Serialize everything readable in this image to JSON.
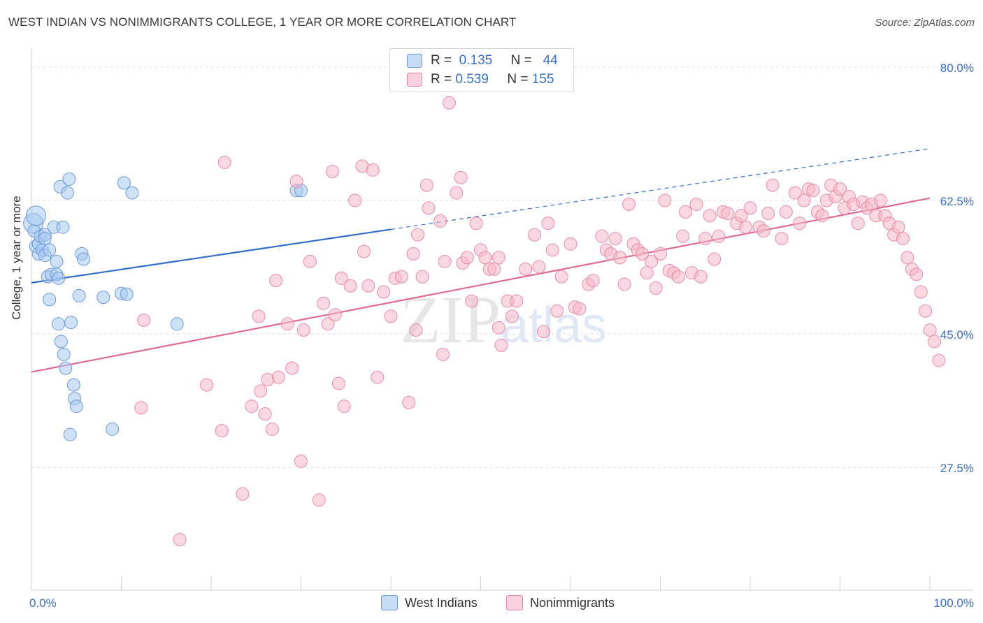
{
  "title": "WEST INDIAN VS NONIMMIGRANTS COLLEGE, 1 YEAR OR MORE CORRELATION CHART",
  "source": "Source: ZipAtlas.com",
  "watermark": "ZIPatlas",
  "legend": {
    "rows": [
      {
        "r_label": "R =",
        "r_value": "0.135",
        "n_label": "N =",
        "n_value": "44",
        "color": "#a8c8f0"
      },
      {
        "r_label": "R =",
        "r_value": "0.539",
        "n_label": "N =",
        "n_value": "155",
        "color": "#f5b8c8"
      }
    ]
  },
  "bottom_legend": [
    {
      "label": "West Indians",
      "color": "#a8c8f0"
    },
    {
      "label": "Nonimmigrants",
      "color": "#f5b8c8"
    }
  ],
  "chart_data": {
    "type": "scatter",
    "title": "WEST INDIAN VS NONIMMIGRANTS COLLEGE, 1 YEAR OR MORE CORRELATION CHART",
    "xlabel": "",
    "ylabel": "College, 1 year or more",
    "xlim": [
      0,
      100
    ],
    "ylim": [
      10,
      85
    ],
    "x_tick_labels": [
      "0.0%",
      "100.0%"
    ],
    "y_ticks": [
      27.5,
      45.0,
      62.5,
      80.0
    ],
    "y_tick_labels": [
      "27.5%",
      "45.0%",
      "62.5%",
      "80.0%"
    ],
    "grid": true,
    "series": [
      {
        "name": "West Indians",
        "color": "#a8c8f0",
        "stroke": "#6a9ad8",
        "trend": {
          "x0": 0,
          "y0": 51.7,
          "x1": 40,
          "y1": 58.7,
          "dash_to": 100,
          "dash_y": 69.3,
          "color": "#2f6ccc"
        },
        "points": [
          [
            0.2,
            59.5
          ],
          [
            0.3,
            58.5
          ],
          [
            0.5,
            56.5
          ],
          [
            0.8,
            55.5
          ],
          [
            0.8,
            56.8
          ],
          [
            1.0,
            57.8
          ],
          [
            1.2,
            56.0
          ],
          [
            1.5,
            55.3
          ],
          [
            1.5,
            58.0
          ],
          [
            1.8,
            52.5
          ],
          [
            2.0,
            49.5
          ],
          [
            2.2,
            52.8
          ],
          [
            2.5,
            59.0
          ],
          [
            2.8,
            54.5
          ],
          [
            2.8,
            52.8
          ],
          [
            3.0,
            46.3
          ],
          [
            3.0,
            52.3
          ],
          [
            3.2,
            64.3
          ],
          [
            3.3,
            44.0
          ],
          [
            3.5,
            59.0
          ],
          [
            3.6,
            42.3
          ],
          [
            3.8,
            40.5
          ],
          [
            4.0,
            63.5
          ],
          [
            4.2,
            65.3
          ],
          [
            4.4,
            46.5
          ],
          [
            4.7,
            38.3
          ],
          [
            4.8,
            36.5
          ],
          [
            5.0,
            35.5
          ],
          [
            5.3,
            50.0
          ],
          [
            5.6,
            55.5
          ],
          [
            5.8,
            54.8
          ],
          [
            4.3,
            31.8
          ],
          [
            8.0,
            49.8
          ],
          [
            9.0,
            32.5
          ],
          [
            10.0,
            50.3
          ],
          [
            10.3,
            64.8
          ],
          [
            10.6,
            50.2
          ],
          [
            11.2,
            63.5
          ],
          [
            16.2,
            46.3
          ],
          [
            29.5,
            63.8
          ],
          [
            30.0,
            63.8
          ],
          [
            0.5,
            60.5
          ],
          [
            1.5,
            57.5
          ],
          [
            2.0,
            56.0
          ]
        ]
      },
      {
        "name": "Nonimmigrants",
        "color": "#f5b8c8",
        "stroke": "#e88aa6",
        "trend": {
          "x0": 0,
          "y0": 40.0,
          "x1": 100,
          "y1": 62.8,
          "color": "#e06a94"
        },
        "points": [
          [
            16.5,
            18.0
          ],
          [
            12.2,
            35.3
          ],
          [
            12.5,
            46.8
          ],
          [
            19.5,
            38.3
          ],
          [
            21.2,
            32.3
          ],
          [
            21.5,
            67.5
          ],
          [
            23.5,
            24.0
          ],
          [
            24.5,
            35.5
          ],
          [
            25.3,
            47.3
          ],
          [
            25.5,
            37.5
          ],
          [
            26.0,
            34.5
          ],
          [
            26.3,
            39.0
          ],
          [
            26.8,
            32.5
          ],
          [
            27.2,
            52.0
          ],
          [
            27.5,
            39.3
          ],
          [
            28.5,
            46.3
          ],
          [
            29.0,
            40.5
          ],
          [
            29.5,
            65.0
          ],
          [
            30.0,
            28.3
          ],
          [
            30.3,
            45.5
          ],
          [
            31.0,
            54.5
          ],
          [
            32.0,
            23.2
          ],
          [
            32.5,
            49.0
          ],
          [
            33.0,
            46.3
          ],
          [
            33.5,
            66.3
          ],
          [
            33.8,
            47.5
          ],
          [
            34.2,
            38.5
          ],
          [
            34.5,
            52.3
          ],
          [
            34.8,
            35.5
          ],
          [
            35.5,
            51.3
          ],
          [
            36.0,
            62.5
          ],
          [
            36.8,
            67.0
          ],
          [
            37.0,
            55.8
          ],
          [
            37.5,
            51.3
          ],
          [
            38.0,
            66.5
          ],
          [
            38.5,
            39.3
          ],
          [
            39.2,
            50.5
          ],
          [
            40.0,
            47.3
          ],
          [
            40.5,
            52.3
          ],
          [
            41.2,
            52.5
          ],
          [
            42.0,
            36.0
          ],
          [
            42.5,
            55.5
          ],
          [
            42.8,
            45.5
          ],
          [
            43.5,
            52.5
          ],
          [
            44.0,
            64.5
          ],
          [
            44.2,
            61.5
          ],
          [
            45.5,
            59.8
          ],
          [
            45.8,
            42.3
          ],
          [
            46.0,
            54.5
          ],
          [
            46.5,
            75.3
          ],
          [
            47.3,
            63.5
          ],
          [
            47.8,
            65.5
          ],
          [
            48.0,
            54.3
          ],
          [
            48.5,
            55.0
          ],
          [
            49.0,
            49.3
          ],
          [
            49.5,
            59.5
          ],
          [
            50.0,
            56.0
          ],
          [
            50.5,
            55.0
          ],
          [
            51.0,
            53.5
          ],
          [
            51.5,
            53.5
          ],
          [
            52.0,
            45.8
          ],
          [
            52.3,
            43.5
          ],
          [
            53.0,
            49.3
          ],
          [
            53.5,
            47.3
          ],
          [
            54.0,
            49.3
          ],
          [
            55.0,
            53.5
          ],
          [
            56.0,
            58.0
          ],
          [
            56.5,
            53.8
          ],
          [
            57.0,
            45.3
          ],
          [
            57.5,
            59.5
          ],
          [
            58.5,
            48.0
          ],
          [
            59.0,
            52.5
          ],
          [
            60.0,
            56.8
          ],
          [
            60.5,
            48.5
          ],
          [
            61.0,
            48.3
          ],
          [
            62.0,
            51.5
          ],
          [
            62.5,
            52.0
          ],
          [
            63.5,
            57.8
          ],
          [
            64.0,
            56.0
          ],
          [
            64.5,
            55.5
          ],
          [
            65.0,
            57.5
          ],
          [
            65.5,
            55.0
          ],
          [
            66.0,
            51.5
          ],
          [
            67.0,
            56.8
          ],
          [
            67.5,
            56.0
          ],
          [
            68.0,
            55.5
          ],
          [
            68.5,
            53.0
          ],
          [
            69.0,
            54.5
          ],
          [
            69.5,
            51.0
          ],
          [
            70.0,
            55.5
          ],
          [
            71.0,
            53.3
          ],
          [
            71.5,
            53.0
          ],
          [
            72.0,
            52.5
          ],
          [
            72.5,
            57.8
          ],
          [
            72.8,
            61.0
          ],
          [
            73.5,
            53.0
          ],
          [
            74.5,
            52.5
          ],
          [
            75.0,
            57.5
          ],
          [
            75.5,
            60.5
          ],
          [
            76.0,
            54.8
          ],
          [
            76.5,
            57.8
          ],
          [
            77.0,
            61.0
          ],
          [
            77.5,
            60.8
          ],
          [
            78.5,
            59.5
          ],
          [
            79.0,
            60.5
          ],
          [
            79.5,
            59.0
          ],
          [
            80.0,
            61.5
          ],
          [
            81.0,
            59.0
          ],
          [
            81.5,
            58.5
          ],
          [
            82.0,
            60.8
          ],
          [
            82.5,
            64.5
          ],
          [
            83.5,
            57.5
          ],
          [
            84.0,
            61.0
          ],
          [
            85.0,
            63.5
          ],
          [
            85.5,
            59.5
          ],
          [
            86.0,
            62.5
          ],
          [
            86.5,
            64.0
          ],
          [
            87.0,
            63.8
          ],
          [
            87.5,
            61.0
          ],
          [
            88.0,
            60.5
          ],
          [
            88.5,
            62.5
          ],
          [
            89.0,
            64.5
          ],
          [
            89.5,
            63.0
          ],
          [
            90.0,
            64.0
          ],
          [
            90.5,
            61.5
          ],
          [
            91.0,
            63.0
          ],
          [
            91.5,
            62.0
          ],
          [
            92.0,
            59.5
          ],
          [
            92.5,
            62.3
          ],
          [
            93.0,
            61.5
          ],
          [
            93.5,
            62.0
          ],
          [
            94.0,
            60.5
          ],
          [
            94.5,
            62.5
          ],
          [
            95.0,
            60.5
          ],
          [
            95.5,
            59.5
          ],
          [
            96.0,
            58.0
          ],
          [
            96.5,
            59.0
          ],
          [
            97.0,
            57.5
          ],
          [
            97.5,
            55.0
          ],
          [
            98.0,
            53.5
          ],
          [
            98.5,
            52.8
          ],
          [
            99.0,
            50.5
          ],
          [
            99.5,
            48.0
          ],
          [
            100.0,
            45.5
          ],
          [
            100.5,
            44.0
          ],
          [
            101.0,
            41.5
          ],
          [
            52.0,
            55.0
          ],
          [
            43.0,
            58.0
          ],
          [
            58.0,
            56.0
          ],
          [
            66.5,
            62.0
          ],
          [
            70.5,
            62.5
          ],
          [
            74.0,
            62.0
          ]
        ]
      }
    ]
  }
}
